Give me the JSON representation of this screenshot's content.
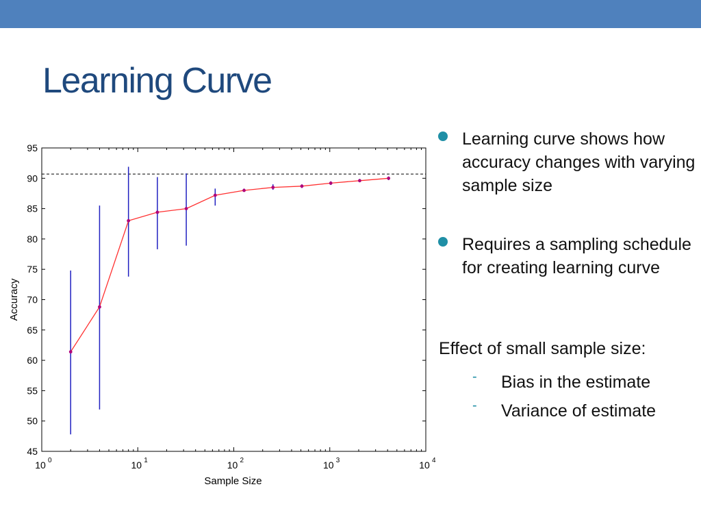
{
  "slide": {
    "title": "Learning Curve",
    "colors": {
      "top_bar": "#4f81bd",
      "title": "#1f497d",
      "bullet": "#1f8fa6"
    },
    "bullets": [
      {
        "text": "Learning curve shows how accuracy changes with varying sample size"
      },
      {
        "text": "Requires a sampling schedule for creating learning curve"
      }
    ],
    "note": "Effect of small sample size:",
    "sub_bullets": [
      {
        "marker": "-",
        "text": "Bias in the estimate"
      },
      {
        "marker": "-",
        "text": "Variance of estimate"
      }
    ]
  },
  "chart_data": {
    "type": "line",
    "xlabel": "Sample Size",
    "ylabel": "Accuracy",
    "x_scale": "log",
    "xlim": [
      1,
      10000
    ],
    "ylim": [
      45,
      95
    ],
    "y_ticks": [
      45,
      50,
      55,
      60,
      65,
      70,
      75,
      80,
      85,
      90,
      95
    ],
    "x_ticks": [
      {
        "value": 1,
        "base": "10",
        "exp": "0"
      },
      {
        "value": 10,
        "base": "10",
        "exp": "1"
      },
      {
        "value": 100,
        "base": "10",
        "exp": "2"
      },
      {
        "value": 1000,
        "base": "10",
        "exp": "3"
      },
      {
        "value": 10000,
        "base": "10",
        "exp": "4"
      }
    ],
    "reference_line": 90.7,
    "grid": false,
    "colors": {
      "line": "#ff3030",
      "error_bar": "#2020c0",
      "marker": "#b0007a",
      "axis": "#000000"
    },
    "points": [
      {
        "x": 2,
        "y": 61.4,
        "low": 47.8,
        "high": 74.8
      },
      {
        "x": 4,
        "y": 68.8,
        "low": 51.9,
        "high": 85.5
      },
      {
        "x": 8,
        "y": 83.0,
        "low": 73.8,
        "high": 91.9
      },
      {
        "x": 16,
        "y": 84.4,
        "low": 78.3,
        "high": 90.2
      },
      {
        "x": 32,
        "y": 85.0,
        "low": 78.9,
        "high": 90.8
      },
      {
        "x": 64,
        "y": 87.2,
        "low": 85.5,
        "high": 88.3
      },
      {
        "x": 128,
        "y": 88.0,
        "low": 87.8,
        "high": 88.3
      },
      {
        "x": 256,
        "y": 88.5,
        "low": 88.1,
        "high": 89.0
      },
      {
        "x": 512,
        "y": 88.7,
        "low": 88.4,
        "high": 89.0
      },
      {
        "x": 1024,
        "y": 89.2,
        "low": 88.9,
        "high": 89.5
      },
      {
        "x": 2048,
        "y": 89.6,
        "low": 89.4,
        "high": 89.9
      },
      {
        "x": 4096,
        "y": 90.0,
        "low": 89.7,
        "high": 90.3
      }
    ]
  }
}
